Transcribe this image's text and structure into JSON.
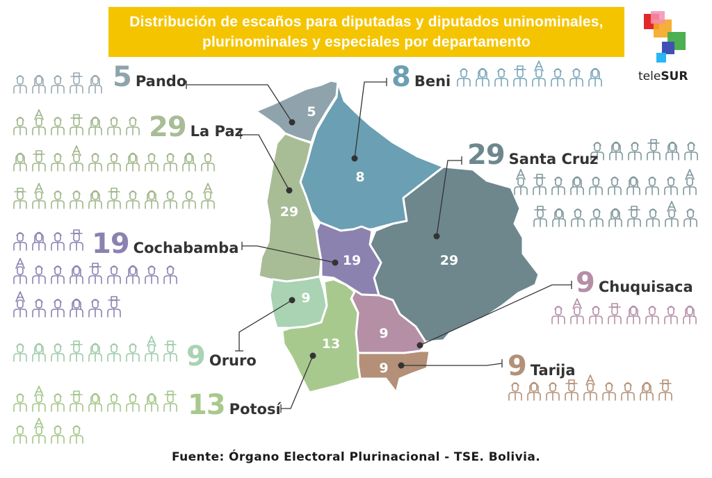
{
  "title": {
    "line1": "Distribución de escaños para diputadas y diputados uninominales,",
    "line2": "plurinominales y especiales por departamento"
  },
  "logo": {
    "name": "teleSUR",
    "part1": "tele",
    "part2": "SUR"
  },
  "source": "Fuente: Órgano Electoral Plurinacional - TSE. Bolivia.",
  "departments": [
    {
      "key": "pando",
      "name": "Pando",
      "seats": 5,
      "label": "5",
      "color": "#8fa3ad",
      "icon_color": "#9aa9b1"
    },
    {
      "key": "beni",
      "name": "Beni",
      "seats": 8,
      "label": "8",
      "color": "#6b9fb3",
      "icon_color": "#7aa6b8"
    },
    {
      "key": "lapaz",
      "name": "La Paz",
      "seats": 29,
      "label": "29",
      "color": "#a8bc96",
      "icon_color": "#9fb589"
    },
    {
      "key": "santacruz",
      "name": "Santa Cruz",
      "seats": 29,
      "label": "29",
      "color": "#6d878d",
      "icon_color": "#7e969b"
    },
    {
      "key": "cochabamba",
      "name": "Cochabamba",
      "seats": 19,
      "label": "19",
      "color": "#8b82b0",
      "icon_color": "#8b82b0"
    },
    {
      "key": "chuquisaca",
      "name": "Chuquisaca",
      "seats": 9,
      "label": "9",
      "color": "#b48fa6",
      "icon_color": "#b48fa6"
    },
    {
      "key": "oruro",
      "name": "Oruro",
      "seats": 9,
      "label": "9",
      "color": "#a9d3b3",
      "icon_color": "#9ccaa7"
    },
    {
      "key": "tarija",
      "name": "Tarija",
      "seats": 9,
      "label": "9",
      "color": "#b39077",
      "icon_color": "#b39077"
    },
    {
      "key": "potosi",
      "name": "Potosí",
      "seats": 13,
      "label": "13",
      "color": "#a8c98d",
      "icon_color": "#a3c588"
    }
  ]
}
